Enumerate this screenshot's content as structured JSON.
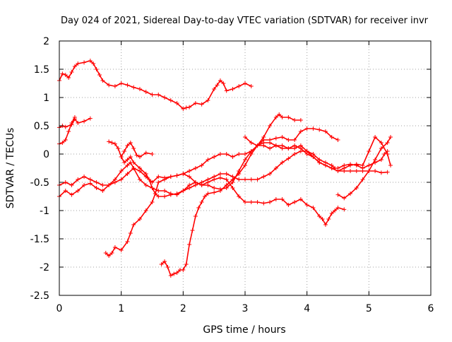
{
  "chart_data": {
    "type": "scatter",
    "title": "Day 024 of 2021, Sidereal Day-to-day VTEC variation (SDTVAR) for receiver invr",
    "xlabel": "GPS time / hours",
    "ylabel": "SDTVAR / TECUs",
    "xlim": [
      0,
      6
    ],
    "ylim": [
      -2.5,
      2
    ],
    "xticks": [
      "0",
      "1",
      "2",
      "3",
      "4",
      "5",
      "6"
    ],
    "yticks": [
      "-2.5",
      "-2",
      "-1.5",
      "-1",
      "-0.5",
      "0",
      "0.5",
      "1",
      "1.5",
      "2"
    ],
    "grid": true,
    "legend": "none",
    "marker": "+",
    "color": "#ff0000",
    "series": [
      {
        "x": [
          0.0,
          0.05,
          0.1,
          0.15,
          0.2,
          0.25,
          0.3,
          0.4,
          0.5,
          0.55,
          0.6,
          0.65,
          0.7,
          0.8,
          0.9,
          1.0,
          1.1,
          1.2,
          1.3,
          1.4,
          1.5,
          1.6,
          1.7,
          1.8,
          1.9,
          2.0,
          2.05,
          2.1,
          2.2,
          2.3,
          2.4,
          2.5,
          2.55,
          2.6,
          2.65,
          2.7,
          2.8,
          2.9,
          3.0,
          3.1
        ],
        "y": [
          1.3,
          1.42,
          1.4,
          1.35,
          1.45,
          1.55,
          1.6,
          1.62,
          1.65,
          1.6,
          1.5,
          1.4,
          1.3,
          1.22,
          1.2,
          1.25,
          1.22,
          1.18,
          1.15,
          1.1,
          1.05,
          1.05,
          1.0,
          0.95,
          0.9,
          0.8,
          0.82,
          0.83,
          0.9,
          0.88,
          0.95,
          1.15,
          1.22,
          1.3,
          1.25,
          1.12,
          1.15,
          1.2,
          1.25,
          1.2
        ]
      },
      {
        "x": [
          0.0,
          0.05,
          0.1,
          0.2,
          0.25,
          0.3,
          0.4,
          0.5
        ],
        "y": [
          0.47,
          0.5,
          0.48,
          0.52,
          0.62,
          0.55,
          0.58,
          0.63
        ]
      },
      {
        "x": [
          0.0,
          0.05,
          0.1,
          0.15,
          0.2,
          0.25
        ],
        "y": [
          0.18,
          0.2,
          0.25,
          0.4,
          0.55,
          0.65
        ]
      },
      {
        "x": [
          0.0,
          0.1,
          0.2,
          0.3,
          0.4,
          0.5,
          0.6,
          0.7,
          0.8,
          0.9,
          1.0,
          1.1,
          1.2,
          1.3,
          1.4,
          1.5,
          1.6,
          1.7,
          1.8,
          1.9,
          2.0,
          2.1,
          2.2,
          2.3,
          2.4,
          2.5,
          2.6,
          2.7,
          2.8,
          2.9,
          3.0,
          3.1,
          3.2,
          3.3,
          3.4,
          3.5,
          3.6,
          3.7,
          3.8,
          3.9,
          4.0,
          4.1,
          4.2,
          4.3,
          4.4,
          4.5,
          4.6,
          4.7,
          4.8,
          4.9,
          5.0,
          5.1,
          5.2,
          5.3
        ],
        "y": [
          -0.55,
          -0.5,
          -0.55,
          -0.45,
          -0.4,
          -0.45,
          -0.5,
          -0.55,
          -0.55,
          -0.5,
          -0.45,
          -0.35,
          -0.25,
          -0.3,
          -0.4,
          -0.5,
          -0.4,
          -0.42,
          -0.4,
          -0.38,
          -0.35,
          -0.3,
          -0.25,
          -0.2,
          -0.1,
          -0.05,
          0.0,
          0.0,
          -0.05,
          0.0,
          0.0,
          0.05,
          0.15,
          0.2,
          0.2,
          0.15,
          0.1,
          0.1,
          0.15,
          0.1,
          0.0,
          -0.05,
          -0.15,
          -0.2,
          -0.25,
          -0.3,
          -0.3,
          -0.3,
          -0.3,
          -0.3,
          -0.3,
          -0.3,
          -0.33,
          -0.32
        ]
      },
      {
        "x": [
          0.0,
          0.1,
          0.2,
          0.3,
          0.4,
          0.5,
          0.6,
          0.7,
          0.8,
          0.9,
          1.0,
          1.1,
          1.15,
          1.2,
          1.3,
          1.4,
          1.5,
          1.6,
          1.7,
          1.8,
          1.9,
          2.0,
          2.1,
          2.2,
          2.3,
          2.4,
          2.5,
          2.6,
          2.7,
          2.8,
          2.9,
          3.0,
          3.1,
          3.2,
          3.3,
          3.4,
          3.5,
          3.6,
          3.7,
          3.8,
          3.9,
          4.0,
          4.1,
          4.2,
          4.25,
          4.3,
          4.35,
          4.4,
          4.45,
          4.5,
          4.6
        ],
        "y": [
          -0.75,
          -0.65,
          -0.72,
          -0.65,
          -0.55,
          -0.52,
          -0.6,
          -0.65,
          -0.55,
          -0.45,
          -0.3,
          -0.2,
          -0.15,
          -0.25,
          -0.45,
          -0.55,
          -0.6,
          -0.65,
          -0.65,
          -0.7,
          -0.72,
          -0.65,
          -0.55,
          -0.5,
          -0.55,
          -0.5,
          -0.45,
          -0.42,
          -0.45,
          -0.6,
          -0.75,
          -0.85,
          -0.85,
          -0.85,
          -0.87,
          -0.85,
          -0.8,
          -0.8,
          -0.9,
          -0.85,
          -0.8,
          -0.9,
          -0.95,
          -1.1,
          -1.15,
          -1.25,
          -1.15,
          -1.05,
          -1.0,
          -0.95,
          -0.98
        ]
      },
      {
        "x": [
          0.8,
          0.85,
          0.9,
          0.95,
          1.0,
          1.05,
          1.1,
          1.15,
          1.2,
          1.3,
          1.4,
          1.45,
          1.5,
          1.55,
          1.6,
          1.7,
          1.8,
          1.9,
          2.0,
          2.1,
          2.2,
          2.3,
          2.4,
          2.5,
          2.6,
          2.7,
          2.8,
          2.9,
          3.0,
          3.1,
          3.2,
          3.3,
          3.4,
          3.5,
          3.6,
          3.7,
          3.8,
          3.9,
          4.0,
          4.1,
          4.2,
          4.3,
          4.4,
          4.45,
          4.5,
          4.6,
          4.7,
          4.8,
          4.9,
          5.0,
          5.1,
          5.2,
          5.25,
          5.3
        ],
        "y": [
          0.22,
          0.2,
          0.18,
          0.1,
          -0.05,
          -0.15,
          -0.1,
          -0.05,
          -0.15,
          -0.25,
          -0.35,
          -0.45,
          -0.6,
          -0.7,
          -0.75,
          -0.75,
          -0.72,
          -0.7,
          -0.65,
          -0.6,
          -0.55,
          -0.5,
          -0.45,
          -0.4,
          -0.35,
          -0.35,
          -0.4,
          -0.45,
          -0.45,
          -0.45,
          -0.45,
          -0.4,
          -0.35,
          -0.25,
          -0.15,
          -0.08,
          0.0,
          0.05,
          0.05,
          0.0,
          -0.1,
          -0.15,
          -0.2,
          -0.25,
          -0.25,
          -0.2,
          -0.18,
          -0.2,
          -0.25,
          -0.2,
          -0.15,
          -0.1,
          0.0,
          0.05
        ]
      },
      {
        "x": [
          0.75,
          0.8,
          0.85,
          0.9,
          1.0,
          1.1,
          1.15,
          1.2,
          1.3,
          1.4,
          1.5,
          1.55,
          1.6,
          1.7,
          1.8,
          1.9,
          2.0,
          2.1,
          2.2,
          2.3,
          2.4,
          2.5,
          2.6,
          2.7,
          2.8,
          2.9,
          3.0,
          3.1,
          3.2,
          3.3,
          3.4,
          3.5,
          3.55,
          3.6,
          3.7,
          3.8,
          3.9
        ],
        "y": [
          -1.75,
          -1.8,
          -1.75,
          -1.65,
          -1.7,
          -1.55,
          -1.4,
          -1.25,
          -1.15,
          -1.0,
          -0.85,
          -0.7,
          -0.5,
          -0.45,
          -0.4,
          -0.38,
          -0.35,
          -0.4,
          -0.5,
          -0.55,
          -0.55,
          -0.6,
          -0.62,
          -0.6,
          -0.5,
          -0.3,
          -0.1,
          0.05,
          0.15,
          0.3,
          0.5,
          0.65,
          0.7,
          0.65,
          0.65,
          0.6,
          0.6
        ]
      },
      {
        "x": [
          1.65,
          1.7,
          1.75,
          1.8,
          1.85,
          1.9,
          1.95,
          2.0,
          2.05,
          2.1,
          2.15,
          2.2,
          2.25,
          2.3,
          2.35,
          2.4,
          2.5,
          2.6,
          2.7,
          2.8,
          2.9,
          3.0,
          3.1,
          3.2,
          3.3,
          3.4,
          3.5,
          3.6,
          3.7,
          3.8,
          3.9,
          4.0,
          4.1,
          4.2,
          4.3,
          4.4,
          4.5
        ],
        "y": [
          -1.95,
          -1.9,
          -2.0,
          -2.15,
          -2.12,
          -2.1,
          -2.05,
          -2.05,
          -1.95,
          -1.6,
          -1.35,
          -1.1,
          -0.95,
          -0.85,
          -0.75,
          -0.7,
          -0.68,
          -0.65,
          -0.55,
          -0.45,
          -0.35,
          -0.2,
          0.0,
          0.15,
          0.25,
          0.25,
          0.28,
          0.3,
          0.25,
          0.25,
          0.4,
          0.45,
          0.45,
          0.43,
          0.4,
          0.3,
          0.25
        ]
      },
      {
        "x": [
          1.0,
          1.05,
          1.1,
          1.15,
          1.2,
          1.25,
          1.3,
          1.4,
          1.5
        ],
        "y": [
          -0.05,
          0.05,
          0.15,
          0.2,
          0.1,
          -0.02,
          -0.05,
          0.02,
          0.0
        ]
      },
      {
        "x": [
          3.0,
          3.1,
          3.2,
          3.3,
          3.4,
          3.5,
          3.6,
          3.7,
          3.8,
          3.9,
          4.0,
          4.1,
          4.2,
          4.3,
          4.4,
          4.5,
          4.6,
          4.7,
          4.8,
          4.9,
          5.0,
          5.1,
          5.2,
          5.3,
          5.35
        ],
        "y": [
          0.3,
          0.2,
          0.15,
          0.15,
          0.1,
          0.15,
          0.15,
          0.1,
          0.1,
          0.15,
          0.05,
          -0.05,
          -0.15,
          -0.2,
          -0.25,
          -0.3,
          -0.25,
          -0.2,
          -0.18,
          -0.2,
          0.05,
          0.3,
          0.2,
          0.0,
          -0.2
        ]
      },
      {
        "x": [
          4.5,
          4.6,
          4.7,
          4.8,
          4.9,
          5.0,
          5.1,
          5.2,
          5.3,
          5.35
        ],
        "y": [
          -0.72,
          -0.78,
          -0.7,
          -0.6,
          -0.45,
          -0.3,
          -0.1,
          0.1,
          0.2,
          0.3
        ]
      }
    ]
  }
}
